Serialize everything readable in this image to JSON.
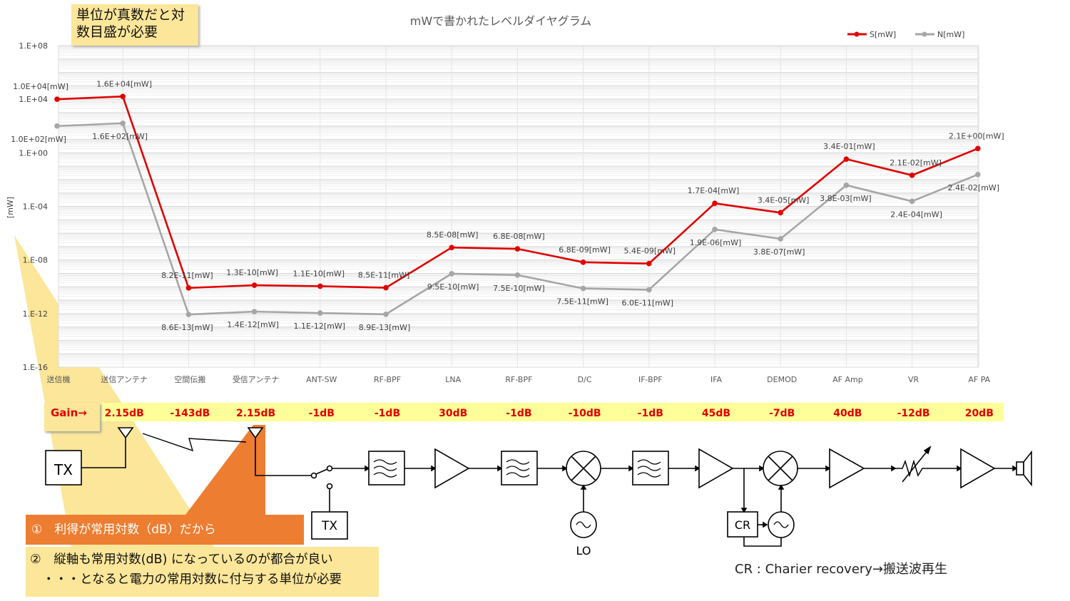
{
  "callouts": {
    "top_note": "単位が真数だと対\n数目盛が必要",
    "note1": "①　利得が常用対数（dB）だから",
    "note2": "②　縦軸も常用対数(dB) になっているのが都合が良い\n　・・・となると電力の常用対数に付与する単位が必要",
    "gain_tag": "Gain→"
  },
  "chart_data": {
    "type": "line",
    "title": "mWで書かれたレベルダイヤグラム",
    "ylabel": "[mW]",
    "xlabel": "",
    "y_scale": "log",
    "ylim": [
      1e-16,
      100000000.0
    ],
    "y_ticks": [
      "1.E-16",
      "1.E-12",
      "1.E-08",
      "1.E-04",
      "1.E+00",
      "1.E+04",
      "1.E+08"
    ],
    "categories": [
      "送信機",
      "送信アンテナ",
      "空間伝搬",
      "受信アンテナ",
      "ANT-SW",
      "RF-BPF",
      "LNA",
      "RF-BPF",
      "D/C",
      "IF-BPF",
      "IFA",
      "DEMOD",
      "AF Amp",
      "VR",
      "AF PA"
    ],
    "legend_position": "top-right",
    "series": [
      {
        "name": "S[mW]",
        "color": "#E00000",
        "values": [
          10000.0,
          16000.0,
          8.2e-11,
          1.3e-10,
          1.1e-10,
          8.5e-11,
          8.5e-08,
          6.8e-08,
          6.8e-09,
          5.4e-09,
          0.00017,
          3.4e-05,
          0.34,
          0.021,
          2.1
        ],
        "labels": [
          "1.0E+04[mW]",
          "1.6E+04[mW]",
          "8.2E-11[mW]",
          "1.3E-10[mW]",
          "1.1E-10[mW]",
          "8.5E-11[mW]",
          "8.5E-08[mW]",
          "6.8E-08[mW]",
          "6.8E-09[mW]",
          "5.4E-09[mW]",
          "1.7E-04[mW]",
          "3.4E-05[mW]",
          "3.4E-01[mW]",
          "2.1E-02[mW]",
          "2.1E+00[mW]"
        ]
      },
      {
        "name": "N[mW]",
        "color": "#A6A6A6",
        "values": [
          100.0,
          160.0,
          8.6e-13,
          1.4e-12,
          1.1e-12,
          8.9e-13,
          9.5e-10,
          7.5e-10,
          7.5e-11,
          6e-11,
          1.9e-06,
          3.8e-07,
          0.0038,
          0.00024,
          0.024
        ],
        "labels": [
          "1.0E+02[mW]",
          "1.6E+02[mW]",
          "8.6E-13[mW]",
          "1.4E-12[mW]",
          "1.1E-12[mW]",
          "8.9E-13[mW]",
          "9.5E-10[mW]",
          "7.5E-10[mW]",
          "7.5E-11[mW]",
          "6.0E-11[mW]",
          "1.9E-06[mW]",
          "3.8E-07[mW]",
          "3.8E-03[mW]",
          "2.4E-04[mW]",
          "2.4E-02[mW]"
        ]
      }
    ]
  },
  "gains": [
    "2.15dB",
    "-143dB",
    "2.15dB",
    "-1dB",
    "-1dB",
    "30dB",
    "-1dB",
    "-10dB",
    "-1dB",
    "45dB",
    "-7dB",
    "40dB",
    "-12dB",
    "20dB"
  ],
  "blocks": {
    "tx_main": "TX",
    "tx_switch": "TX",
    "lo": "LO",
    "cr": "CR",
    "cr_note": "CR : Charier recovery→搬送波再生"
  },
  "colors": {
    "signal": "#E00000",
    "noise": "#A6A6A6",
    "highlight": "#FBE699",
    "orange": "#ED7D31",
    "gain_bar": "#FFFF99"
  }
}
